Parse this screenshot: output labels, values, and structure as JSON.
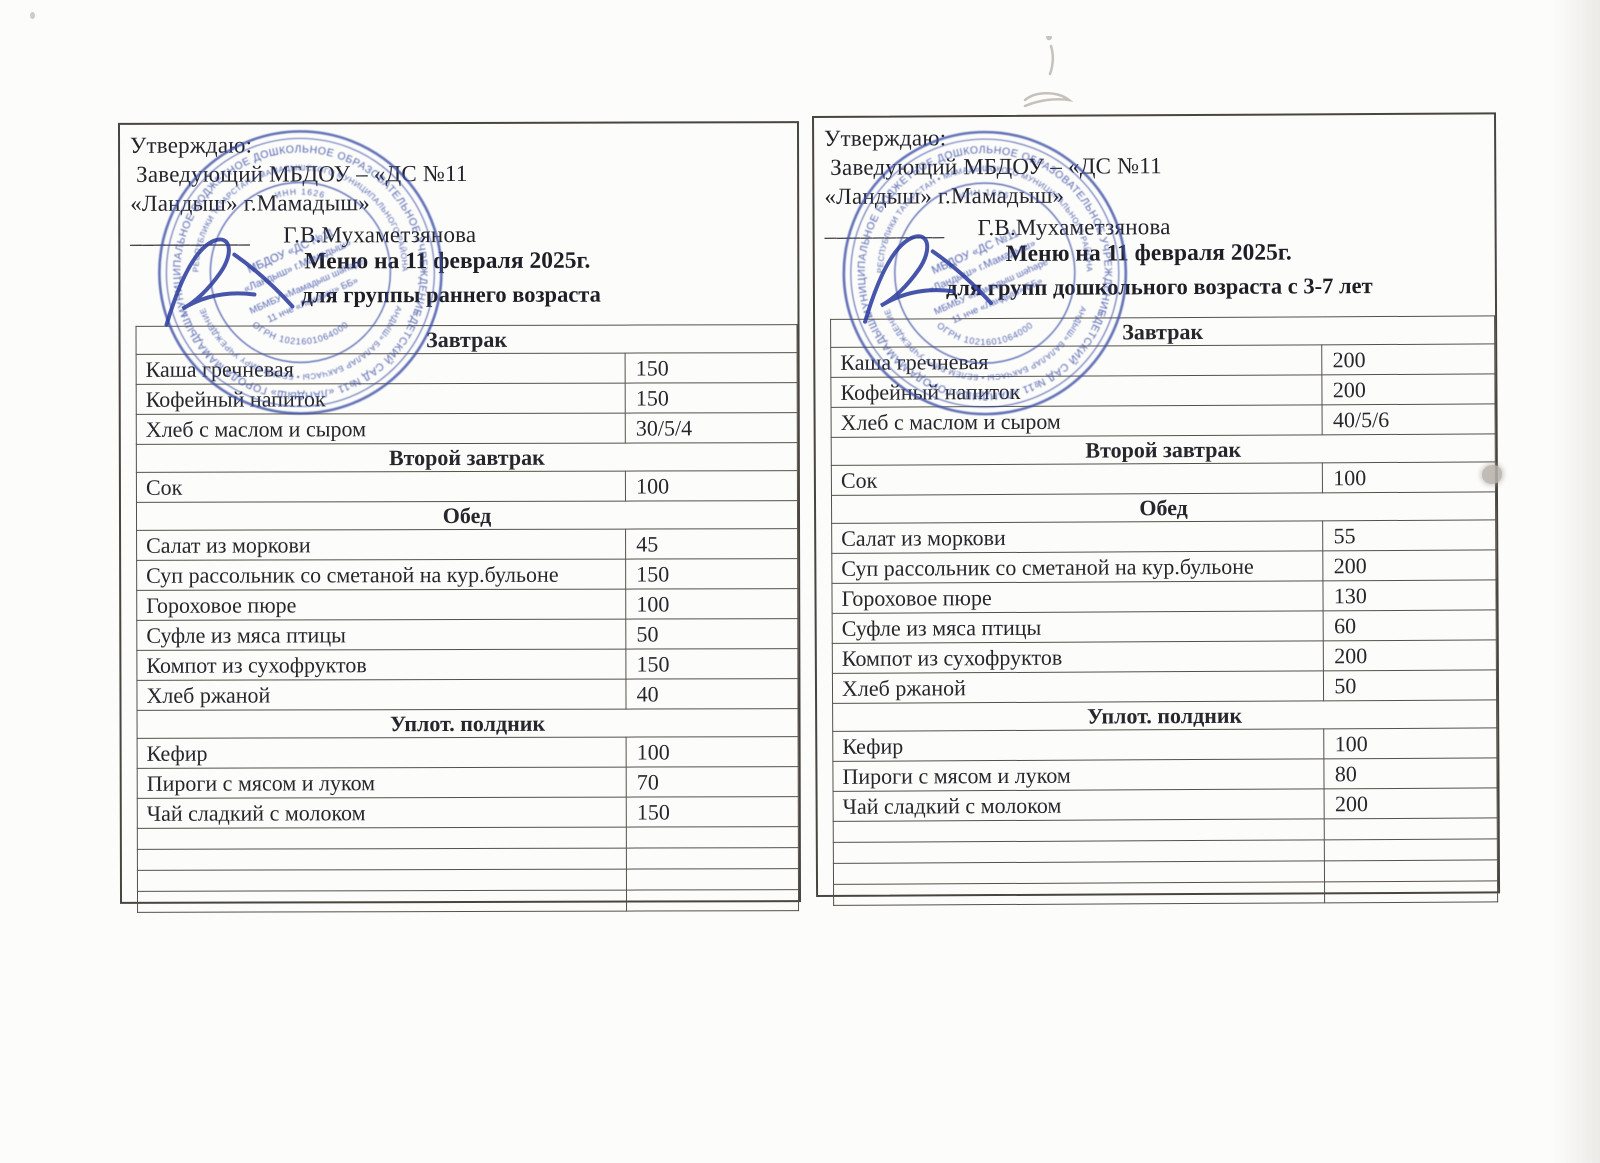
{
  "document": {
    "approval": {
      "line1": "Утверждаю:",
      "line2": "Заведующий МБДОУ – «ДС №11",
      "line3": "«Ландыш» г.Мамадыш»",
      "signature_line": "__________",
      "signatory": "Г.В.Мухаметзянова"
    },
    "menus": [
      {
        "panel": "left",
        "title": "Меню на 11 февраля 2025г.",
        "subtitle": "для группы раннего возраста",
        "sections": [
          {
            "header": "Завтрак",
            "rows": [
              {
                "dish": "Каша гречневая",
                "qty": "150"
              },
              {
                "dish": "Кофейный напиток",
                "qty": "150"
              },
              {
                "dish": "Хлеб с маслом и сыром",
                "qty": "30/5/4"
              }
            ]
          },
          {
            "header": "Второй завтрак",
            "rows": [
              {
                "dish": "Сок",
                "qty": "100"
              }
            ]
          },
          {
            "header": "Обед",
            "rows": [
              {
                "dish": "Салат из моркови",
                "qty": "45"
              },
              {
                "dish": "Суп рассольник со сметаной на кур.бульоне",
                "qty": "150"
              },
              {
                "dish": "Гороховое пюре",
                "qty": "100"
              },
              {
                "dish": "Суфле из мяса птицы",
                "qty": "50"
              },
              {
                "dish": "Компот из сухофруктов",
                "qty": "150"
              },
              {
                "dish": "Хлеб ржаной",
                "qty": "40"
              }
            ]
          },
          {
            "header": "Уплот. полдник",
            "rows": [
              {
                "dish": "Кефир",
                "qty": "100"
              },
              {
                "dish": "Пироги с мясом и луком",
                "qty": "70"
              },
              {
                "dish": "Чай сладкий с молоком",
                "qty": "150"
              }
            ]
          }
        ],
        "empty_rows": 4
      },
      {
        "panel": "right",
        "title": "Меню на 11 февраля 2025г.",
        "subtitle": "для групп дошкольного возраста с 3-7 лет",
        "sections": [
          {
            "header": "Завтрак",
            "rows": [
              {
                "dish": "Каша гречневая",
                "qty": "200"
              },
              {
                "dish": "Кофейный напиток",
                "qty": "200"
              },
              {
                "dish": "Хлеб с маслом и сыром",
                "qty": "40/5/6"
              }
            ]
          },
          {
            "header": "Второй завтрак",
            "rows": [
              {
                "dish": "Сок",
                "qty": "100"
              }
            ]
          },
          {
            "header": "Обед",
            "rows": [
              {
                "dish": "Салат из моркови",
                "qty": "55"
              },
              {
                "dish": "Суп рассольник со сметаной на кур.бульоне",
                "qty": "200"
              },
              {
                "dish": "Гороховое пюре",
                "qty": "130"
              },
              {
                "dish": "Суфле из мяса птицы",
                "qty": "60"
              },
              {
                "dish": "Компот из сухофруктов",
                "qty": "200"
              },
              {
                "dish": "Хлеб ржаной",
                "qty": "50"
              }
            ]
          },
          {
            "header": "Уплот. полдник",
            "rows": [
              {
                "dish": "Кефир",
                "qty": "100"
              },
              {
                "dish": "Пироги с мясом и луком",
                "qty": "80"
              },
              {
                "dish": "Чай сладкий с молоком",
                "qty": "200"
              }
            ]
          }
        ],
        "empty_rows": 4
      }
    ],
    "stamp": {
      "ink_color": "#3b4da6",
      "outer_top": "МУНИЦИПАЛЬНОЕ БЮДЖЕТНОЕ ДОШКОЛЬНОЕ ОБРАЗОВАТЕЛЬНОЕ УЧРЕЖДЕНИЕ",
      "outer_bottom": "«ДЕТСКИЙ САД №11 «ЛАНДЫШ» ГОРОДА МАМАДЫШ»",
      "middle_top": "РЕСПУБЛИКИ ТАТАРСТАН • МАМАДЫШСКОГО МУНИЦИПАЛЬНОГО РАЙОНА",
      "middle_bottom": "«ЛАНДЫШ» БАЛАЛАР БАКЧАСЫ • БЕЛЕМ БИРҮ УЧРЕЖДЕНИЕСЕ",
      "inn_text": "ИНН 1626",
      "ogrn_text": "ОГРН 1021601064000",
      "center_lines": [
        "МБДОУ «ДС №11",
        "«Ландыш» г.Мамадыш»",
        "МБМБУ «Мамадыш шәһәре",
        "11 нче «Ландыш» ББ»"
      ]
    }
  }
}
